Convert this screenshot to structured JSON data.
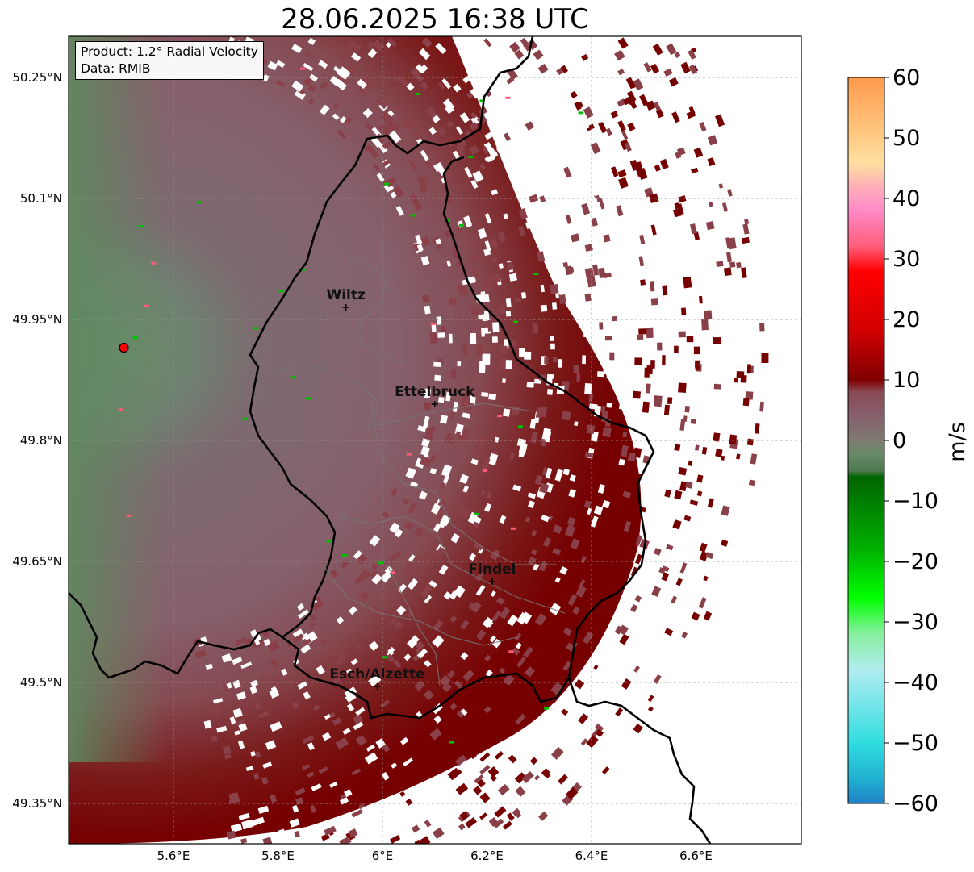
{
  "title": "28.06.2025 16:38 UTC",
  "info": {
    "product": "Product: 1.2° Radial Velocity",
    "source": "Data: RMIB"
  },
  "map": {
    "lon_range": [
      5.4,
      6.8
    ],
    "lat_range": [
      49.3,
      50.3
    ],
    "lat_ticks": [
      {
        "value": 50.25,
        "label": "50.25°N"
      },
      {
        "value": 50.1,
        "label": "50.1°N"
      },
      {
        "value": 49.95,
        "label": "49.95°N"
      },
      {
        "value": 49.8,
        "label": "49.8°N"
      },
      {
        "value": 49.65,
        "label": "49.65°N"
      },
      {
        "value": 49.5,
        "label": "49.5°N"
      },
      {
        "value": 49.35,
        "label": "49.35°N"
      }
    ],
    "lon_ticks": [
      {
        "value": 5.6,
        "label": "5.6°E"
      },
      {
        "value": 5.8,
        "label": "5.8°E"
      },
      {
        "value": 6.0,
        "label": "6°E"
      },
      {
        "value": 6.2,
        "label": "6.2°E"
      },
      {
        "value": 6.4,
        "label": "6.4°E"
      },
      {
        "value": 6.6,
        "label": "6.6°E"
      }
    ],
    "radar_site": {
      "lon": 5.505,
      "lat": 49.915
    },
    "cities": [
      {
        "name": "Wiltz",
        "lon": 5.93,
        "lat": 49.965
      },
      {
        "name": "Ettelbruck",
        "lon": 6.1,
        "lat": 49.845
      },
      {
        "name": "Findel",
        "lon": 6.21,
        "lat": 49.625
      },
      {
        "name": "Esch/Alzette",
        "lon": 5.99,
        "lat": 49.495
      }
    ]
  },
  "colorbar": {
    "unit": "m/s",
    "min": -60,
    "max": 60,
    "ticks": [
      {
        "value": 60,
        "label": "60"
      },
      {
        "value": 50,
        "label": "50"
      },
      {
        "value": 40,
        "label": "40"
      },
      {
        "value": 30,
        "label": "30"
      },
      {
        "value": 20,
        "label": "20"
      },
      {
        "value": 10,
        "label": "10"
      },
      {
        "value": 0,
        "label": "0"
      },
      {
        "value": -10,
        "label": "−10"
      },
      {
        "value": -20,
        "label": "−20"
      },
      {
        "value": -30,
        "label": "−30"
      },
      {
        "value": -40,
        "label": "−40"
      },
      {
        "value": -50,
        "label": "−50"
      },
      {
        "value": -60,
        "label": "−60"
      }
    ],
    "stops": [
      {
        "v": 60,
        "c": "#ff9a4d"
      },
      {
        "v": 52,
        "c": "#ffc279"
      },
      {
        "v": 46,
        "c": "#ffe0a0"
      },
      {
        "v": 42,
        "c": "#ffb0b8"
      },
      {
        "v": 38,
        "c": "#ff8ac8"
      },
      {
        "v": 32,
        "c": "#ff5c78"
      },
      {
        "v": 28,
        "c": "#ff0000"
      },
      {
        "v": 18,
        "c": "#d00000"
      },
      {
        "v": 10,
        "c": "#800000"
      },
      {
        "v": 8,
        "c": "#8a4a55"
      },
      {
        "v": 4,
        "c": "#86606c"
      },
      {
        "v": 0,
        "c": "#7e7a70"
      },
      {
        "v": -2,
        "c": "#6a8a6a"
      },
      {
        "v": -5,
        "c": "#4f7a4f"
      },
      {
        "v": -6,
        "c": "#006400"
      },
      {
        "v": -18,
        "c": "#00b000"
      },
      {
        "v": -26,
        "c": "#00ff00"
      },
      {
        "v": -32,
        "c": "#88f0a0"
      },
      {
        "v": -38,
        "c": "#b0ecf0"
      },
      {
        "v": -50,
        "c": "#30dde0"
      },
      {
        "v": -56,
        "c": "#20b0d0"
      },
      {
        "v": -60,
        "c": "#2080c8"
      }
    ]
  },
  "colors": {
    "background_velocity": "#86606c",
    "near_zero": "#6a8a6a",
    "outbound_strong": "#760000",
    "outbound_medium": "#8a4048",
    "radar_marker": "#ff0000",
    "border": "#000000"
  }
}
